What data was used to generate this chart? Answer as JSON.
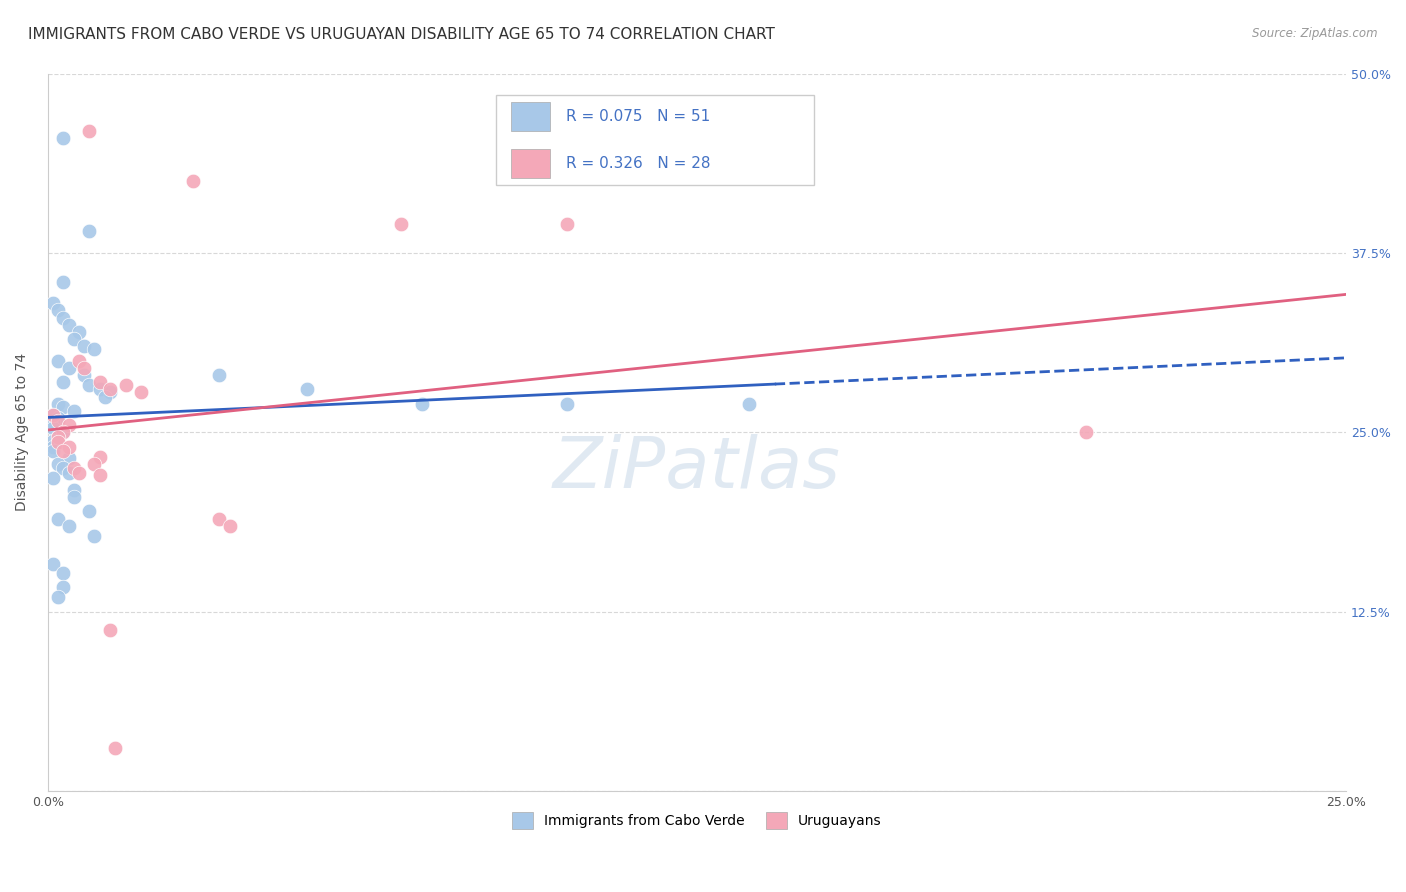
{
  "title": "IMMIGRANTS FROM CABO VERDE VS URUGUAYAN DISABILITY AGE 65 TO 74 CORRELATION CHART",
  "source": "Source: ZipAtlas.com",
  "ylabel": "Disability Age 65 to 74",
  "legend_label_blue": "Immigrants from Cabo Verde",
  "legend_label_pink": "Uruguayans",
  "R_blue": 0.075,
  "N_blue": 51,
  "R_pink": 0.326,
  "N_pink": 28,
  "xlim": [
    0.0,
    0.25
  ],
  "ylim": [
    0.0,
    0.5
  ],
  "color_blue": "#a8c8e8",
  "color_pink": "#f4a8b8",
  "trendline_blue": "#3060c0",
  "trendline_pink": "#e06080",
  "blue_points": [
    [
      0.003,
      0.455
    ],
    [
      0.008,
      0.39
    ],
    [
      0.003,
      0.355
    ],
    [
      0.001,
      0.34
    ],
    [
      0.002,
      0.335
    ],
    [
      0.003,
      0.33
    ],
    [
      0.004,
      0.325
    ],
    [
      0.006,
      0.32
    ],
    [
      0.005,
      0.315
    ],
    [
      0.007,
      0.31
    ],
    [
      0.009,
      0.308
    ],
    [
      0.002,
      0.3
    ],
    [
      0.004,
      0.295
    ],
    [
      0.007,
      0.29
    ],
    [
      0.003,
      0.285
    ],
    [
      0.008,
      0.283
    ],
    [
      0.01,
      0.28
    ],
    [
      0.012,
      0.278
    ],
    [
      0.011,
      0.275
    ],
    [
      0.002,
      0.27
    ],
    [
      0.003,
      0.268
    ],
    [
      0.005,
      0.265
    ],
    [
      0.001,
      0.262
    ],
    [
      0.002,
      0.26
    ],
    [
      0.001,
      0.257
    ],
    [
      0.001,
      0.253
    ],
    [
      0.003,
      0.25
    ],
    [
      0.002,
      0.247
    ],
    [
      0.001,
      0.244
    ],
    [
      0.001,
      0.24
    ],
    [
      0.001,
      0.237
    ],
    [
      0.004,
      0.232
    ],
    [
      0.002,
      0.228
    ],
    [
      0.003,
      0.225
    ],
    [
      0.004,
      0.222
    ],
    [
      0.001,
      0.218
    ],
    [
      0.005,
      0.21
    ],
    [
      0.005,
      0.205
    ],
    [
      0.008,
      0.195
    ],
    [
      0.002,
      0.19
    ],
    [
      0.004,
      0.185
    ],
    [
      0.009,
      0.178
    ],
    [
      0.001,
      0.158
    ],
    [
      0.003,
      0.152
    ],
    [
      0.003,
      0.142
    ],
    [
      0.002,
      0.135
    ],
    [
      0.033,
      0.29
    ],
    [
      0.05,
      0.28
    ],
    [
      0.072,
      0.27
    ],
    [
      0.1,
      0.27
    ],
    [
      0.135,
      0.27
    ]
  ],
  "pink_points": [
    [
      0.008,
      0.46
    ],
    [
      0.028,
      0.425
    ],
    [
      0.068,
      0.395
    ],
    [
      0.1,
      0.395
    ],
    [
      0.006,
      0.3
    ],
    [
      0.007,
      0.295
    ],
    [
      0.01,
      0.285
    ],
    [
      0.015,
      0.283
    ],
    [
      0.012,
      0.28
    ],
    [
      0.018,
      0.278
    ],
    [
      0.001,
      0.262
    ],
    [
      0.002,
      0.258
    ],
    [
      0.004,
      0.255
    ],
    [
      0.003,
      0.25
    ],
    [
      0.002,
      0.247
    ],
    [
      0.002,
      0.243
    ],
    [
      0.004,
      0.24
    ],
    [
      0.003,
      0.237
    ],
    [
      0.01,
      0.233
    ],
    [
      0.009,
      0.228
    ],
    [
      0.005,
      0.225
    ],
    [
      0.006,
      0.222
    ],
    [
      0.01,
      0.22
    ],
    [
      0.033,
      0.19
    ],
    [
      0.035,
      0.185
    ],
    [
      0.2,
      0.25
    ],
    [
      0.012,
      0.112
    ],
    [
      0.013,
      0.03
    ]
  ],
  "watermark": "ZiPatlas",
  "background_color": "#ffffff",
  "grid_color": "#d8d8d8",
  "title_fontsize": 11,
  "axis_label_fontsize": 10,
  "tick_fontsize": 9
}
